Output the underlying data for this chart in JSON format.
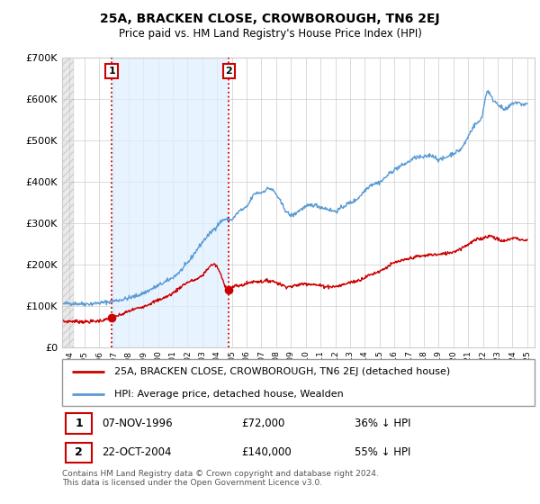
{
  "title": "25A, BRACKEN CLOSE, CROWBOROUGH, TN6 2EJ",
  "subtitle": "Price paid vs. HM Land Registry's House Price Index (HPI)",
  "legend_line1": "25A, BRACKEN CLOSE, CROWBOROUGH, TN6 2EJ (detached house)",
  "legend_line2": "HPI: Average price, detached house, Wealden",
  "sale1_date": "07-NOV-1996",
  "sale1_price": 72000,
  "sale1_label": "36% ↓ HPI",
  "sale2_date": "22-OCT-2004",
  "sale2_price": 140000,
  "sale2_label": "55% ↓ HPI",
  "footnote": "Contains HM Land Registry data © Crown copyright and database right 2024.\nThis data is licensed under the Open Government Licence v3.0.",
  "hpi_color": "#5b9bd5",
  "price_color": "#cc0000",
  "vline_color": "#cc0000",
  "shade_color": "#ddeeff",
  "ylim": [
    0,
    700000
  ],
  "yticks": [
    0,
    100000,
    200000,
    300000,
    400000,
    500000,
    600000,
    700000
  ],
  "xlim_start": 1993.5,
  "xlim_end": 2025.5,
  "sale1_x": 1996.86,
  "sale2_x": 2004.79,
  "hpi_keypoints": [
    [
      1993.5,
      105000
    ],
    [
      1994.0,
      107000
    ],
    [
      1995.0,
      106000
    ],
    [
      1996.0,
      108000
    ],
    [
      1997.0,
      113000
    ],
    [
      1998.0,
      120000
    ],
    [
      1999.0,
      132000
    ],
    [
      2000.0,
      150000
    ],
    [
      2001.0,
      170000
    ],
    [
      2002.0,
      205000
    ],
    [
      2003.0,
      255000
    ],
    [
      2004.0,
      295000
    ],
    [
      2004.5,
      310000
    ],
    [
      2005.0,
      310000
    ],
    [
      2005.5,
      330000
    ],
    [
      2006.0,
      340000
    ],
    [
      2006.5,
      370000
    ],
    [
      2007.0,
      375000
    ],
    [
      2007.5,
      385000
    ],
    [
      2008.0,
      370000
    ],
    [
      2008.5,
      340000
    ],
    [
      2009.0,
      320000
    ],
    [
      2009.5,
      330000
    ],
    [
      2010.0,
      340000
    ],
    [
      2010.5,
      345000
    ],
    [
      2011.0,
      340000
    ],
    [
      2011.5,
      335000
    ],
    [
      2012.0,
      330000
    ],
    [
      2012.5,
      340000
    ],
    [
      2013.0,
      350000
    ],
    [
      2013.5,
      360000
    ],
    [
      2014.0,
      380000
    ],
    [
      2014.5,
      395000
    ],
    [
      2015.0,
      400000
    ],
    [
      2015.5,
      415000
    ],
    [
      2016.0,
      430000
    ],
    [
      2016.5,
      440000
    ],
    [
      2017.0,
      450000
    ],
    [
      2017.5,
      460000
    ],
    [
      2018.0,
      460000
    ],
    [
      2018.5,
      465000
    ],
    [
      2019.0,
      455000
    ],
    [
      2019.5,
      460000
    ],
    [
      2020.0,
      470000
    ],
    [
      2020.5,
      480000
    ],
    [
      2021.0,
      510000
    ],
    [
      2021.5,
      540000
    ],
    [
      2022.0,
      570000
    ],
    [
      2022.3,
      620000
    ],
    [
      2022.5,
      610000
    ],
    [
      2023.0,
      590000
    ],
    [
      2023.5,
      575000
    ],
    [
      2024.0,
      590000
    ],
    [
      2024.5,
      590000
    ],
    [
      2025.0,
      590000
    ]
  ],
  "red_keypoints": [
    [
      1993.5,
      62000
    ],
    [
      1994.0,
      64000
    ],
    [
      1995.0,
      63000
    ],
    [
      1996.0,
      65000
    ],
    [
      1996.86,
      72000
    ],
    [
      1997.0,
      74000
    ],
    [
      1997.5,
      80000
    ],
    [
      1998.0,
      88000
    ],
    [
      1999.0,
      100000
    ],
    [
      2000.0,
      115000
    ],
    [
      2001.0,
      132000
    ],
    [
      2002.0,
      158000
    ],
    [
      2003.0,
      175000
    ],
    [
      2004.0,
      195000
    ],
    [
      2004.79,
      140000
    ],
    [
      2005.0,
      145000
    ],
    [
      2005.5,
      150000
    ],
    [
      2006.0,
      155000
    ],
    [
      2006.5,
      160000
    ],
    [
      2007.0,
      160000
    ],
    [
      2007.5,
      162000
    ],
    [
      2008.0,
      158000
    ],
    [
      2008.5,
      150000
    ],
    [
      2009.0,
      148000
    ],
    [
      2009.5,
      152000
    ],
    [
      2010.0,
      155000
    ],
    [
      2010.5,
      153000
    ],
    [
      2011.0,
      150000
    ],
    [
      2011.5,
      148000
    ],
    [
      2012.0,
      148000
    ],
    [
      2012.5,
      152000
    ],
    [
      2013.0,
      158000
    ],
    [
      2013.5,
      162000
    ],
    [
      2014.0,
      170000
    ],
    [
      2014.5,
      178000
    ],
    [
      2015.0,
      185000
    ],
    [
      2015.5,
      195000
    ],
    [
      2016.0,
      205000
    ],
    [
      2016.5,
      210000
    ],
    [
      2017.0,
      215000
    ],
    [
      2017.5,
      220000
    ],
    [
      2018.0,
      222000
    ],
    [
      2018.5,
      225000
    ],
    [
      2019.0,
      225000
    ],
    [
      2019.5,
      228000
    ],
    [
      2020.0,
      232000
    ],
    [
      2020.5,
      240000
    ],
    [
      2021.0,
      250000
    ],
    [
      2021.5,
      260000
    ],
    [
      2022.0,
      265000
    ],
    [
      2022.5,
      270000
    ],
    [
      2023.0,
      262000
    ],
    [
      2023.5,
      258000
    ],
    [
      2024.0,
      265000
    ],
    [
      2024.5,
      262000
    ],
    [
      2025.0,
      260000
    ]
  ]
}
